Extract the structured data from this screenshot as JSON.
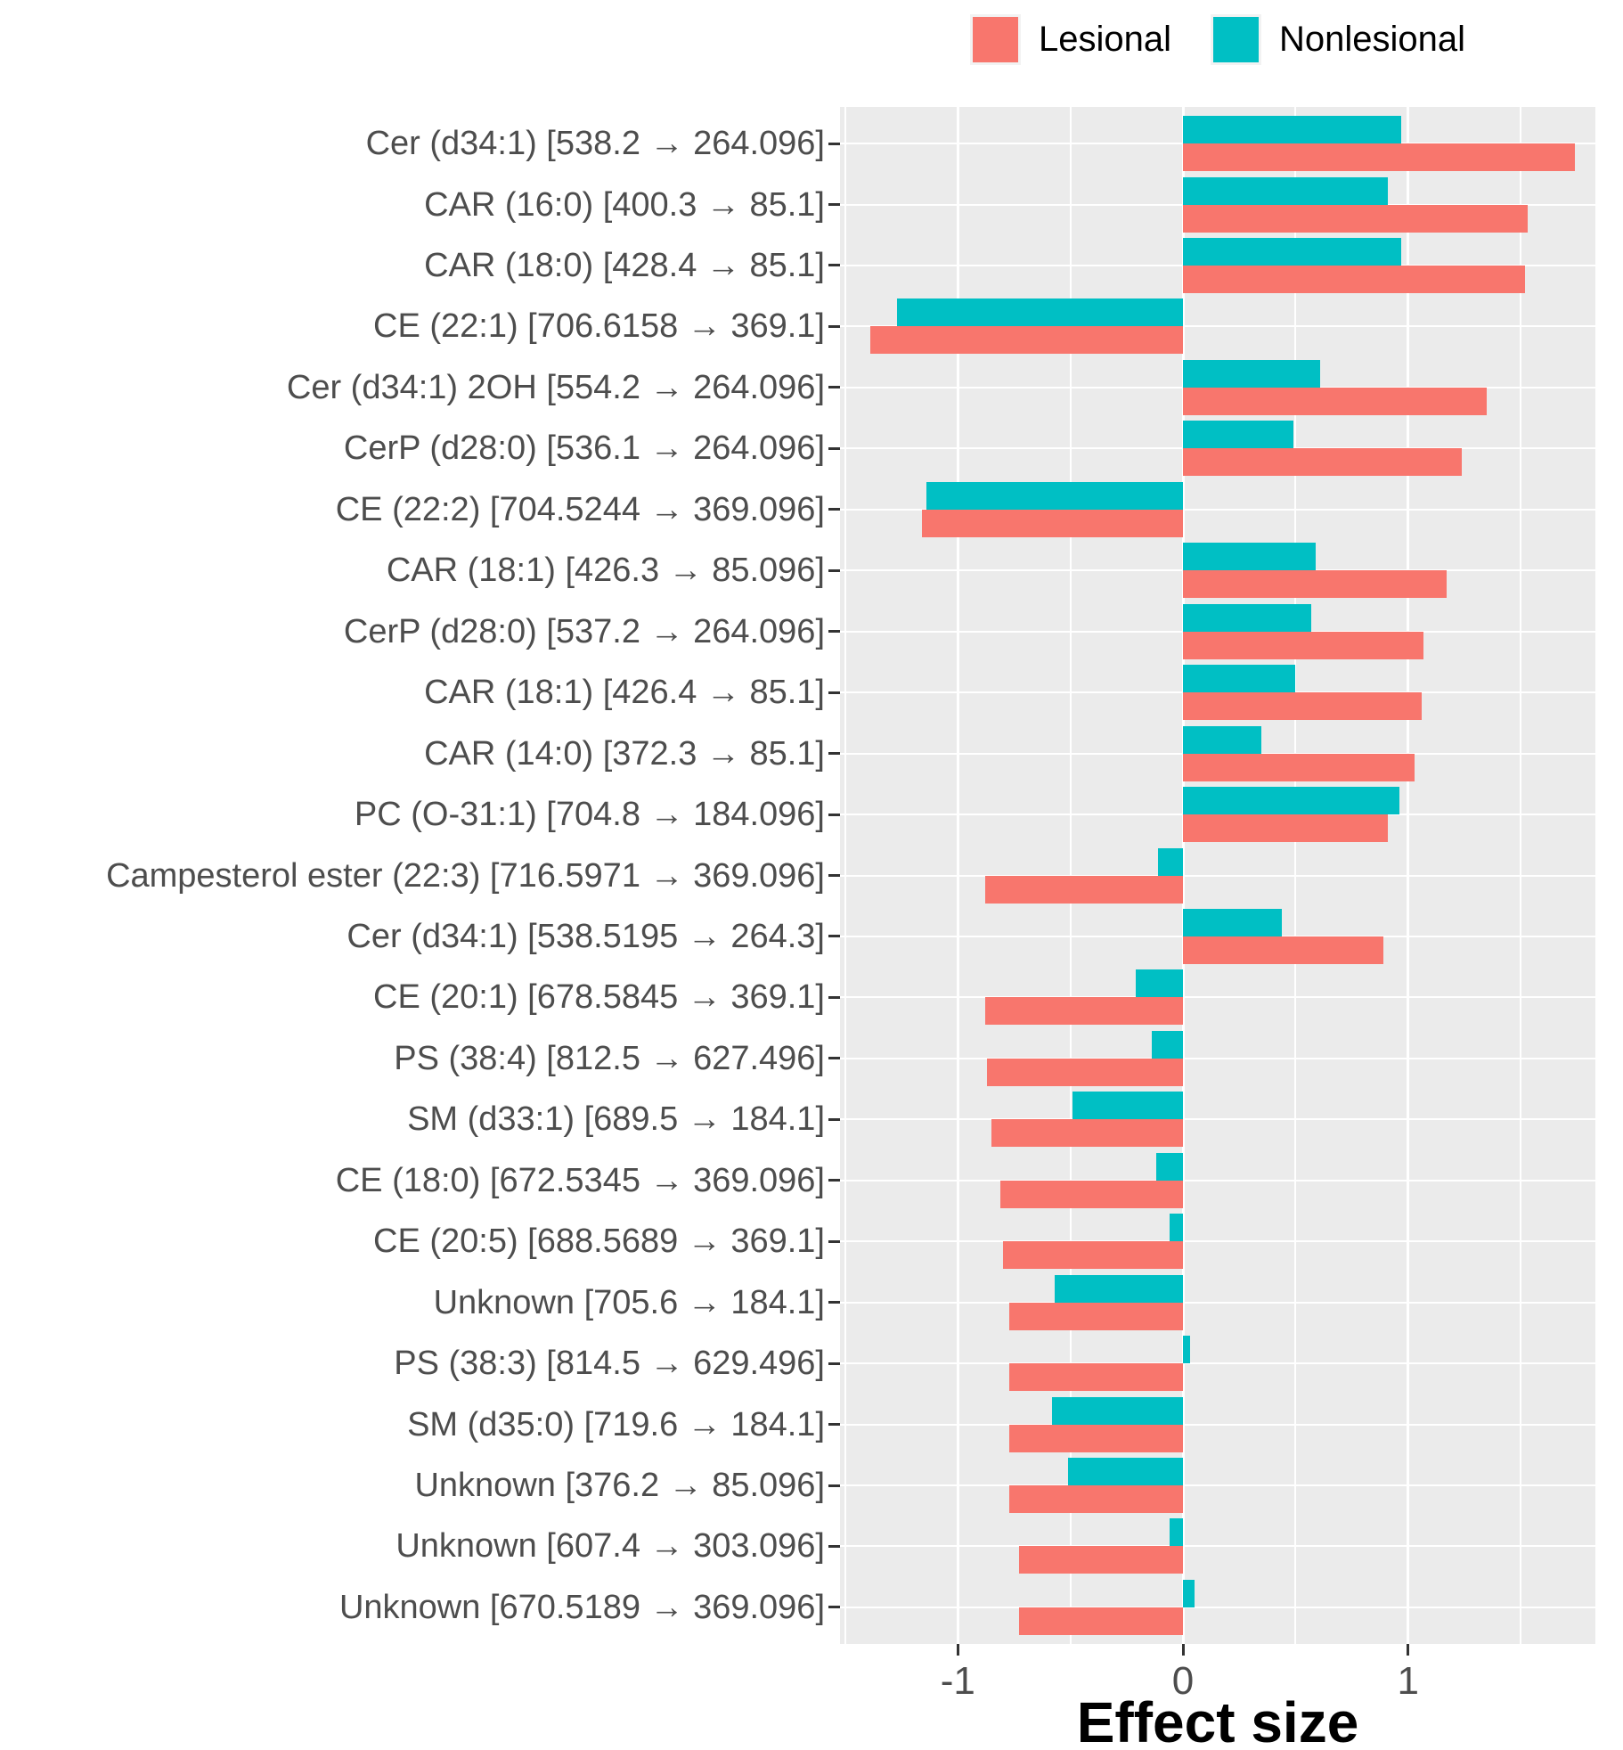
{
  "legend": {
    "items": [
      {
        "label": "Lesional",
        "color": "#F8766D"
      },
      {
        "label": "Nonlesional",
        "color": "#00BFC4"
      }
    ]
  },
  "axes": {
    "x_title": "Effect size",
    "x_tick_labels": [
      "-1",
      "0",
      "1"
    ],
    "x_tick_values": [
      -1,
      0,
      1
    ]
  },
  "panel_style": {
    "background": "#EBEBEB",
    "gridline_color": "#FFFFFF",
    "tick_color": "#333333",
    "axis_text_color": "#4D4D4D"
  },
  "chart_data": {
    "type": "bar",
    "orientation": "horizontal",
    "title": "",
    "xlabel": "Effect size",
    "ylabel": "",
    "xlim": [
      -1.52,
      1.83
    ],
    "x_major_gridlines": [
      -1,
      0,
      1
    ],
    "x_minor_gridlines": [
      -1.5,
      -0.5,
      0.5,
      1.5
    ],
    "grid": true,
    "legend_position": "top",
    "categories": [
      "Cer (d34:1) [538.2 → 264.096]",
      "CAR (16:0) [400.3 → 85.1]",
      "CAR (18:0) [428.4 → 85.1]",
      "CE (22:1) [706.6158 → 369.1]",
      "Cer (d34:1) 2OH [554.2 → 264.096]",
      "CerP (d28:0) [536.1 → 264.096]",
      "CE (22:2) [704.5244 → 369.096]",
      "CAR (18:1) [426.3 → 85.096]",
      "CerP (d28:0) [537.2 → 264.096]",
      "CAR (18:1) [426.4 → 85.1]",
      "CAR (14:0) [372.3 → 85.1]",
      "PC (O-31:1) [704.8 → 184.096]",
      "Campesterol ester (22:3) [716.5971 → 369.096]",
      "Cer (d34:1) [538.5195 → 264.3]",
      "CE (20:1) [678.5845 → 369.1]",
      "PS (38:4) [812.5 → 627.496]",
      "SM (d33:1) [689.5 → 184.1]",
      "CE (18:0) [672.5345 → 369.096]",
      "CE (20:5) [688.5689 → 369.1]",
      "Unknown [705.6 → 184.1]",
      "PS (38:3) [814.5 → 629.496]",
      "SM (d35:0) [719.6 → 184.1]",
      "Unknown [376.2 → 85.096]",
      "Unknown [607.4 → 303.096]",
      "Unknown [670.5189 → 369.096]"
    ],
    "series": [
      {
        "name": "Lesional",
        "color": "#F8766D",
        "values": [
          1.74,
          1.53,
          1.52,
          -1.39,
          1.35,
          1.24,
          -1.16,
          1.17,
          1.07,
          1.06,
          1.03,
          0.91,
          -0.88,
          0.89,
          -0.88,
          -0.87,
          -0.85,
          -0.81,
          -0.8,
          -0.77,
          -0.77,
          -0.77,
          -0.77,
          -0.73,
          -0.73
        ]
      },
      {
        "name": "Nonlesional",
        "color": "#00BFC4",
        "values": [
          0.97,
          0.91,
          0.97,
          -1.27,
          0.61,
          0.49,
          -1.14,
          0.59,
          0.57,
          0.5,
          0.35,
          0.96,
          -0.11,
          0.44,
          -0.21,
          -0.14,
          -0.49,
          -0.12,
          -0.06,
          -0.57,
          0.03,
          -0.58,
          -0.51,
          -0.06,
          0.05
        ]
      }
    ]
  }
}
